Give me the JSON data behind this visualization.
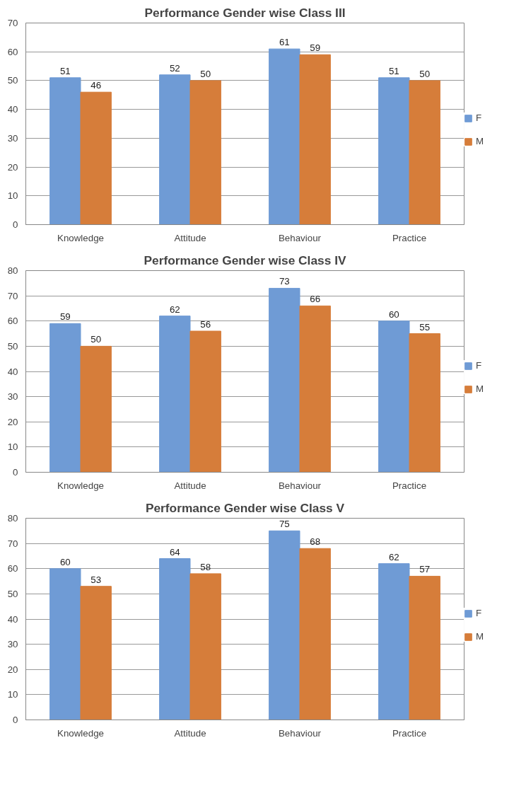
{
  "chart_data": [
    {
      "type": "bar",
      "title": "Performance Gender wise Class III",
      "categories": [
        "Knowledge",
        "Attitude",
        "Behaviour",
        "Practice"
      ],
      "series": [
        {
          "name": "F",
          "color": "#6f9bd5",
          "values": [
            51,
            52,
            61,
            51
          ]
        },
        {
          "name": "M",
          "color": "#d67d3a",
          "values": [
            46,
            50,
            59,
            50
          ]
        }
      ],
      "ylim": [
        0,
        70
      ],
      "yticks": [
        0,
        10,
        20,
        30,
        40,
        50,
        60,
        70
      ],
      "grid": "y",
      "legend": "right",
      "data_labels": true
    },
    {
      "type": "bar",
      "title": "Performance Gender wise Class IV",
      "categories": [
        "Knowledge",
        "Attitude",
        "Behaviour",
        "Practice"
      ],
      "series": [
        {
          "name": "F",
          "color": "#6f9bd5",
          "values": [
            59,
            62,
            73,
            60
          ]
        },
        {
          "name": "M",
          "color": "#d67d3a",
          "values": [
            50,
            56,
            66,
            55
          ]
        }
      ],
      "ylim": [
        0,
        80
      ],
      "yticks": [
        0,
        10,
        20,
        30,
        40,
        50,
        60,
        70,
        80
      ],
      "grid": "y",
      "legend": "right",
      "data_labels": true
    },
    {
      "type": "bar",
      "title": "Performance Gender wise Class V",
      "categories": [
        "Knowledge",
        "Attitude",
        "Behaviour",
        "Practice"
      ],
      "series": [
        {
          "name": "F",
          "color": "#6f9bd5",
          "values": [
            60,
            64,
            75,
            62
          ]
        },
        {
          "name": "M",
          "color": "#d67d3a",
          "values": [
            53,
            58,
            68,
            57
          ]
        }
      ],
      "ylim": [
        0,
        80
      ],
      "yticks": [
        0,
        10,
        20,
        30,
        40,
        50,
        60,
        70,
        80
      ],
      "grid": "y",
      "legend": "right",
      "data_labels": true
    }
  ]
}
